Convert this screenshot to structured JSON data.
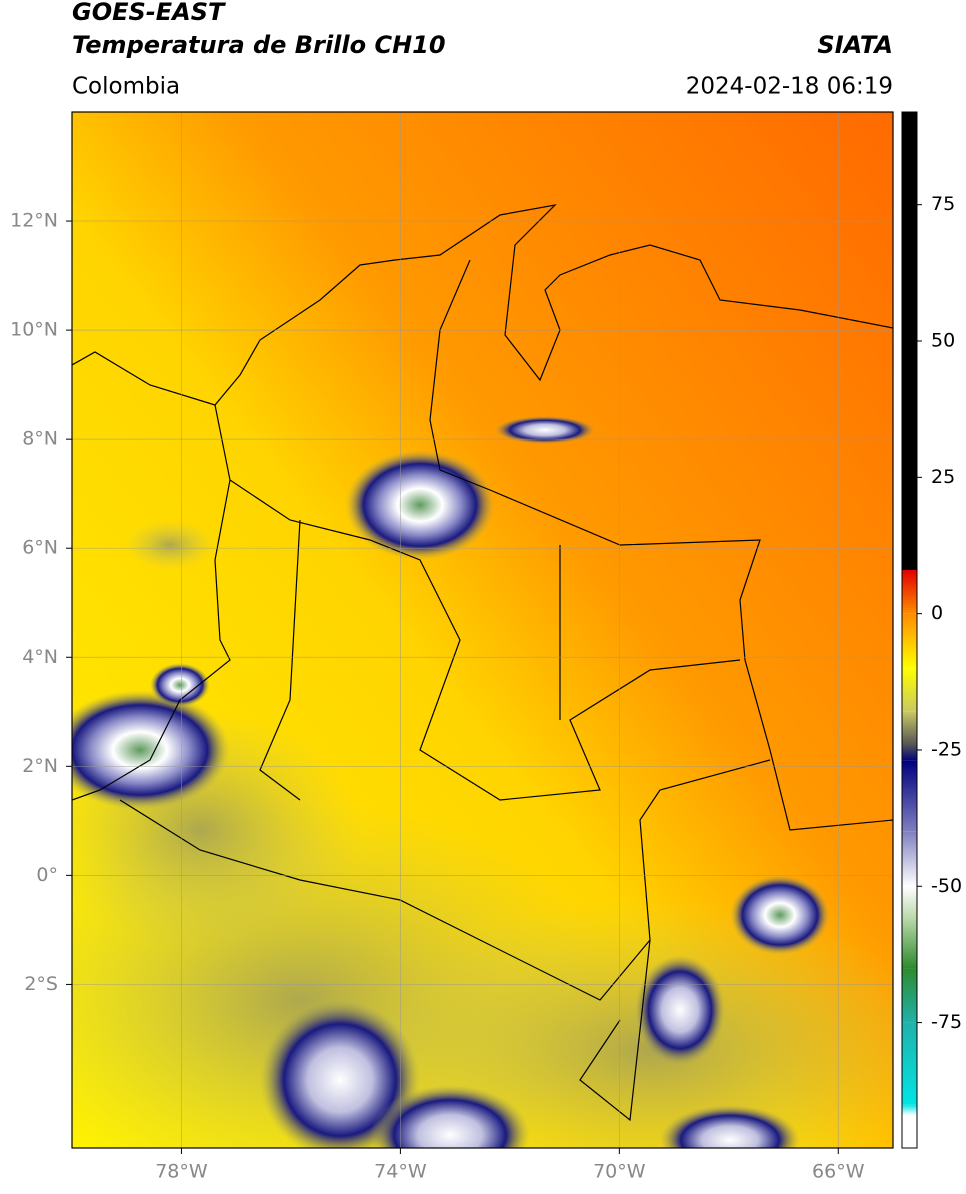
{
  "header": {
    "title": "GOES-EAST",
    "subtitle": "Temperatura de Brillo CH10",
    "source": "SIATA",
    "region": "Colombia",
    "datetime": "2024-02-18 06:19"
  },
  "map": {
    "xlim": [
      -80,
      -65
    ],
    "ylim": [
      -5,
      14
    ],
    "grid": true,
    "xticks": [
      {
        "value": -78,
        "label": "78°W"
      },
      {
        "value": -74,
        "label": "74°W"
      },
      {
        "value": -70,
        "label": "70°W"
      },
      {
        "value": -66,
        "label": "66°W"
      }
    ],
    "yticks": [
      {
        "value": 12,
        "label": "12°N"
      },
      {
        "value": 10,
        "label": "10°N"
      },
      {
        "value": 8,
        "label": "8°N"
      },
      {
        "value": 6,
        "label": "6°N"
      },
      {
        "value": 4,
        "label": "4°N"
      },
      {
        "value": 2,
        "label": "2°N"
      },
      {
        "value": 0,
        "label": "0°"
      },
      {
        "value": -2,
        "label": "2°S"
      }
    ]
  },
  "colorbar": {
    "lim": [
      -98,
      92
    ],
    "ticks": [
      75,
      50,
      25,
      0,
      -25,
      -50,
      -75
    ],
    "colormap": [
      [
        92,
        "#000000"
      ],
      [
        8,
        "#000000"
      ],
      [
        8,
        "#e00000"
      ],
      [
        0,
        "#ff8c00"
      ],
      [
        -10,
        "#ffff00"
      ],
      [
        -18,
        "#c8c864"
      ],
      [
        -24,
        "#555555"
      ],
      [
        -27,
        "#000080"
      ],
      [
        -40,
        "#8080c0"
      ],
      [
        -50,
        "#ffffff"
      ],
      [
        -56,
        "#b8d8a8"
      ],
      [
        -65,
        "#2e8b2e"
      ],
      [
        -75,
        "#20b2aa"
      ],
      [
        -90,
        "#00e5e5"
      ],
      [
        -92,
        "#ffffff"
      ],
      [
        -98,
        "#ffffff"
      ]
    ]
  }
}
